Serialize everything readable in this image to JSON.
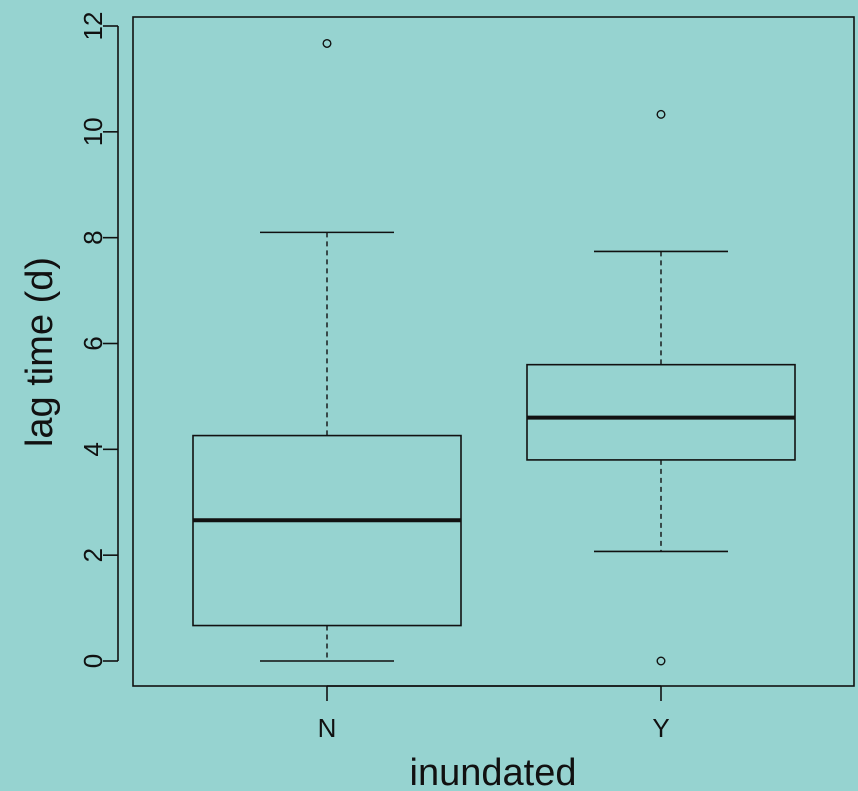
{
  "chart_data": {
    "type": "box",
    "title": "",
    "xlabel": "inundated",
    "ylabel": "lag time (d)",
    "ylim": [
      -0.45,
      12.2
    ],
    "yticks": [
      0,
      2,
      4,
      6,
      8,
      10,
      12
    ],
    "ytick_labels": [
      "0",
      "2",
      "4",
      "6",
      "8",
      "10",
      "12"
    ],
    "categories": [
      "N",
      "Y"
    ],
    "boxes": [
      {
        "name": "N",
        "whisker_low": 0.0,
        "q1": 0.67,
        "median": 2.66,
        "q3": 4.26,
        "whisker_high": 8.1,
        "outliers": [
          11.67
        ]
      },
      {
        "name": "Y",
        "whisker_low": 2.07,
        "q1": 3.8,
        "median": 4.6,
        "q3": 5.6,
        "whisker_high": 7.74,
        "outliers": [
          10.33,
          0.0
        ]
      }
    ],
    "colors": {
      "background": "#96d3d0",
      "stroke": "#111111"
    }
  }
}
